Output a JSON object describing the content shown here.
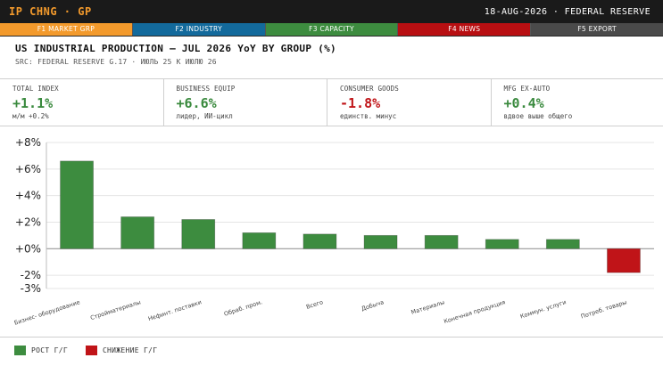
{
  "header": {
    "brand": "IP CHNG · GP",
    "date_source": "18-AUG-2026 · FEDERAL RESERVE"
  },
  "fkeys": [
    {
      "label": "F1 MARKET GRP",
      "color": "#f39a2c"
    },
    {
      "label": "F2 INDUSTRY",
      "color": "#136a9c"
    },
    {
      "label": "F3 CAPACITY",
      "color": "#3d8c3f"
    },
    {
      "label": "F4 NEWS",
      "color": "#b80f12"
    },
    {
      "label": "F5 EXPORT",
      "color": "#4a4a4a"
    }
  ],
  "title": "US INDUSTRIAL PRODUCTION — JUL 2026 YoY BY GROUP (%)",
  "subtitle": "SRC: FEDERAL RESERVE G.17 · ИЮЛЬ 25 К ИЮЛЮ 26",
  "kpis": [
    {
      "label": "TOTAL INDEX",
      "value": "+1.1%",
      "note": "м/м +0.2%",
      "tone": "pos"
    },
    {
      "label": "BUSINESS EQUIP",
      "value": "+6.6%",
      "note": "лидер, ИИ-цикл",
      "tone": "pos"
    },
    {
      "label": "CONSUMER GOODS",
      "value": "-1.8%",
      "note": "единств. минус",
      "tone": "neg"
    },
    {
      "label": "MFG EX-AUTO",
      "value": "+0.4%",
      "note": "вдвое выше общего",
      "tone": "pos"
    }
  ],
  "chart_data": {
    "type": "bar",
    "categories": [
      "Бизнес- оборудование",
      "Стройматериалы",
      "Нефинт. поставки",
      "Обраб. пром.",
      "Всего",
      "Добыча",
      "Материалы",
      "Конечная продукция",
      "Коммун. услуги",
      "Потреб. товары"
    ],
    "values": [
      6.6,
      2.4,
      2.2,
      1.2,
      1.1,
      1.0,
      1.0,
      0.7,
      0.7,
      -1.8
    ],
    "ylim": [
      -3,
      8
    ],
    "yticks": [
      8,
      6,
      4,
      2,
      0,
      -2,
      -3
    ],
    "ytick_labels": [
      "+8%",
      "+6%",
      "+4%",
      "+2%",
      "+0%",
      "-2%",
      "-3%"
    ],
    "grid": true,
    "colors": {
      "positive": "#3d8c3f",
      "negative": "#c01418"
    }
  },
  "legend": [
    {
      "label": "РОСТ Г/Г",
      "color": "#3d8c3f"
    },
    {
      "label": "СНИЖЕНИЕ Г/Г",
      "color": "#c01418"
    }
  ]
}
